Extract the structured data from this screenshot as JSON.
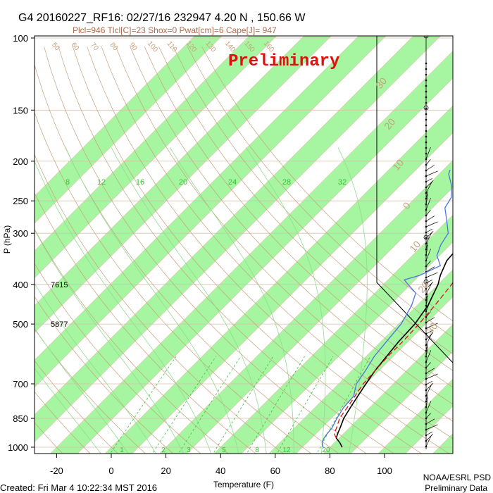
{
  "header": {
    "title": "G4 20160227_RF16: 02/27/16 232947   4.20 N , 150.66 W",
    "params": "Plcl=946 Tlcl[C]=23 Shox=0 Pwat[cm]=6 Cape[J]= 947",
    "stamp": "Preliminary"
  },
  "footer": {
    "created": "Created: Fri Mar  4 10:22:34 MST 2016",
    "org": "NOAA/ESRL PSD",
    "note": "Preliminary Data"
  },
  "colors": {
    "green_band": "#a6f5a0",
    "temperature": "#000000",
    "dewpoint": "#4a74e0",
    "parcel": "#e01010",
    "dry_adiabat": "#c7a07c",
    "moist_adiabat": "#8fdc8f",
    "mixing_ratio": "#39c039",
    "isotherm_label": "#c7a07c",
    "stamp": "#e01010"
  },
  "chart_data": {
    "type": "line",
    "subtype": "skew-T log-P diagram",
    "xlabel": "Temperature (F)",
    "ylabel": "P (hPa)",
    "x_ticks": [
      -20,
      0,
      20,
      40,
      60,
      80,
      100
    ],
    "y_ticks": [
      100,
      150,
      200,
      250,
      300,
      400,
      500,
      700,
      850,
      1000
    ],
    "y_scale": "log",
    "grid": true,
    "height_labels": [
      {
        "p": 400,
        "value": "7615"
      },
      {
        "p": 500,
        "value": "5877"
      }
    ],
    "dry_adiabat_labels": [
      "50",
      "60",
      "70",
      "80",
      "90",
      "100",
      "110",
      "120",
      "130",
      "140",
      "150",
      "160"
    ],
    "mixing_ratio_labels": [
      "8",
      "12",
      "16",
      "20",
      "24",
      "28",
      "32"
    ],
    "mixing_ratio_bottom_labels": [
      "1",
      "2",
      "3",
      "5",
      "8",
      "12",
      "20"
    ],
    "hodograph_labels": [
      "30",
      "20",
      "10",
      "0",
      "10",
      "20",
      "30"
    ],
    "series": [
      {
        "name": "Temperature",
        "points": [
          [
            1000,
            84.5
          ],
          [
            975,
            82.0
          ],
          [
            950,
            79.0
          ],
          [
            925,
            77.8
          ],
          [
            900,
            76.8
          ],
          [
            850,
            74.5
          ],
          [
            800,
            73.0
          ],
          [
            750,
            71.5
          ],
          [
            700,
            70.0
          ],
          [
            650,
            68.5
          ],
          [
            600,
            67.5
          ],
          [
            550,
            66.5
          ],
          [
            500,
            66.0
          ],
          [
            450,
            64.0
          ],
          [
            400,
            60.0
          ],
          [
            380,
            57.5
          ],
          [
            350,
            54.5
          ],
          [
            330,
            54.0
          ],
          [
            300,
            51.0
          ],
          [
            270,
            46.0
          ],
          [
            250,
            43.0
          ],
          [
            225,
            39.5
          ],
          [
            200,
            36.0
          ],
          [
            185,
            33.5
          ]
        ]
      },
      {
        "name": "Dewpoint",
        "points": [
          [
            1000,
            77.5
          ],
          [
            975,
            75.5
          ],
          [
            950,
            74.5
          ],
          [
            925,
            74.0
          ],
          [
            900,
            73.8
          ],
          [
            850,
            72.0
          ],
          [
            800,
            70.5
          ],
          [
            750,
            70.0
          ],
          [
            700,
            66.5
          ],
          [
            650,
            65.0
          ],
          [
            600,
            63.0
          ],
          [
            550,
            62.0
          ],
          [
            500,
            61.0
          ],
          [
            450,
            58.0
          ],
          [
            420,
            55.0
          ],
          [
            400,
            49.0
          ],
          [
            390,
            46.0
          ],
          [
            380,
            50.0
          ],
          [
            360,
            54.0
          ],
          [
            340,
            49.0
          ],
          [
            320,
            46.5
          ],
          [
            300,
            45.0
          ],
          [
            280,
            40.0
          ],
          [
            260,
            34.5
          ],
          [
            245,
            33.0
          ],
          [
            230,
            29.0
          ],
          [
            215,
            23.5
          ],
          [
            210,
            22.5
          ]
        ]
      },
      {
        "name": "Parcel",
        "points": [
          [
            950,
            79.0
          ],
          [
            925,
            76.5
          ],
          [
            900,
            75.5
          ],
          [
            850,
            73.0
          ],
          [
            800,
            71.8
          ],
          [
            750,
            70.5
          ],
          [
            700,
            69.0
          ],
          [
            650,
            68.5
          ],
          [
            600,
            68.0
          ],
          [
            550,
            68.0
          ],
          [
            500,
            67.5
          ],
          [
            450,
            66.5
          ],
          [
            400,
            65.0
          ],
          [
            370,
            63.0
          ],
          [
            330,
            59.0
          ],
          [
            300,
            56.0
          ],
          [
            270,
            52.0
          ],
          [
            250,
            49.5
          ],
          [
            230,
            45.0
          ],
          [
            210,
            40.5
          ],
          [
            195,
            37.5
          ],
          [
            188,
            36.5
          ]
        ]
      }
    ]
  }
}
